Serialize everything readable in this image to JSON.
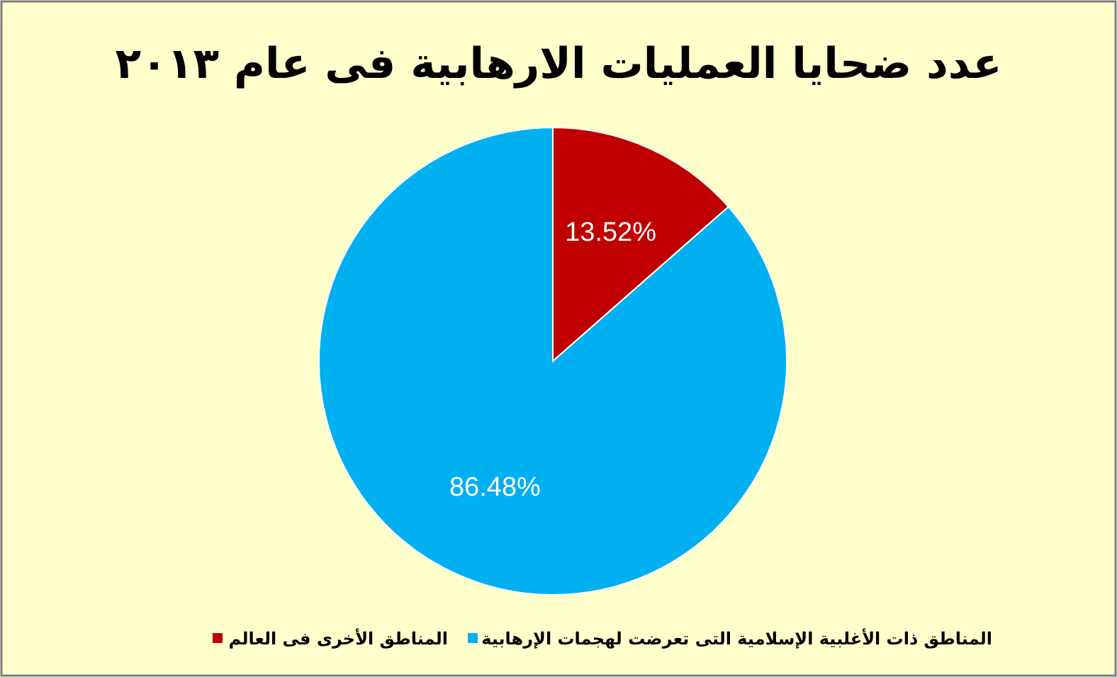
{
  "chart_data": {
    "type": "pie",
    "title": "عدد ضحايا العمليات الارهابية فى عام ٢٠١٣",
    "categories": [
      "المناطق الأخرى فى العالم",
      "المناطق ذات الأغلبية الإسلامية التى تعرضت لهجمات الإرهابية"
    ],
    "values": [
      13.52,
      86.48
    ],
    "colors": [
      "#c00000",
      "#00b0f0"
    ],
    "value_labels": [
      "13.52%",
      "86.48%"
    ],
    "legend": "bottom"
  }
}
